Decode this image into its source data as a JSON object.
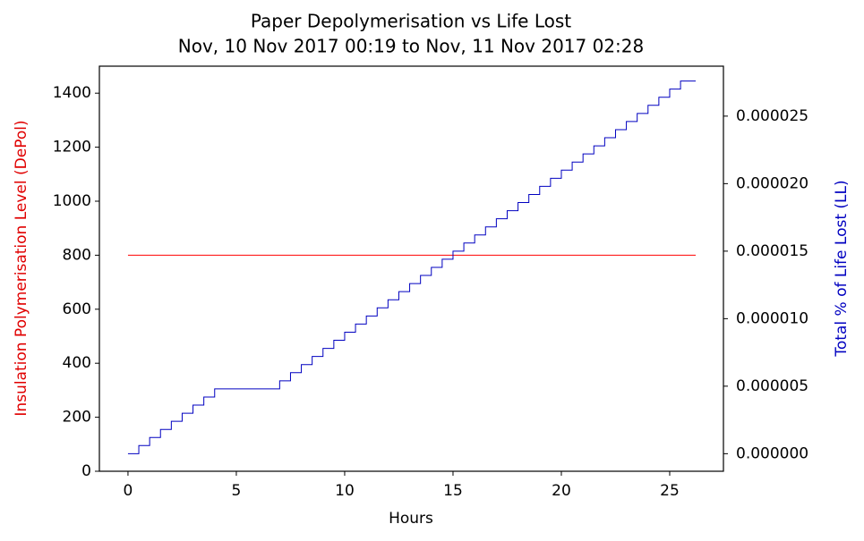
{
  "chart_data": {
    "type": "line",
    "title": "Paper Depolymerisation vs Life Lost",
    "subtitle": "Nov, 10 Nov 2017 00:19 to Nov, 11 Nov 2017 02:28",
    "xlabel": "Hours",
    "ylabel": "Insulation Polymerisation Level (DePol)",
    "y2label": "Total % of Life Lost (LL)",
    "ylabel_color": "#e00000",
    "y2label_color": "#0000c0",
    "xlim": [
      -1.32,
      27.48
    ],
    "xticks": [
      0,
      5,
      10,
      15,
      20,
      25
    ],
    "ylim": [
      0,
      1500
    ],
    "yticks": [
      0,
      200,
      400,
      600,
      800,
      1000,
      1200,
      1400
    ],
    "y2lim": [
      -1.3e-06,
      2.87e-05
    ],
    "y2ticks": [
      {
        "value": 0,
        "label": "0.000000"
      },
      {
        "value": 5e-06,
        "label": "0.000005"
      },
      {
        "value": 1e-05,
        "label": "0.000010"
      },
      {
        "value": 1.5e-05,
        "label": "0.000015"
      },
      {
        "value": 2e-05,
        "label": "0.000020"
      },
      {
        "value": 2.5e-05,
        "label": "0.000025"
      }
    ],
    "series": [
      {
        "name": "DePol",
        "color": "#ff0000",
        "axis": "y",
        "drawstyle": "default",
        "x": [
          0,
          26.2
        ],
        "values": [
          800,
          800
        ]
      },
      {
        "name": "LL",
        "color": "#0000c0",
        "axis": "y2",
        "drawstyle": "steps-post",
        "x": [
          0,
          0.5,
          1,
          1.5,
          2,
          2.5,
          3,
          3.5,
          4,
          7,
          7.5,
          8,
          8.5,
          9,
          9.5,
          10,
          10.5,
          11,
          11.5,
          12,
          12.5,
          13,
          13.5,
          14,
          14.5,
          15,
          15.5,
          16,
          16.5,
          17,
          17.5,
          18,
          18.5,
          19,
          19.5,
          20,
          20.5,
          21,
          21.5,
          22,
          22.5,
          23,
          23.5,
          24,
          24.5,
          25,
          25.5,
          26.2
        ],
        "values": [
          0,
          6e-07,
          1.2e-06,
          1.8e-06,
          2.4e-06,
          3e-06,
          3.6e-06,
          4.2e-06,
          4.8e-06,
          5.4e-06,
          6e-06,
          6.6e-06,
          7.2e-06,
          7.8e-06,
          8.4e-06,
          9e-06,
          9.6e-06,
          1.02e-05,
          1.08e-05,
          1.14e-05,
          1.2e-05,
          1.26e-05,
          1.32e-05,
          1.38e-05,
          1.44e-05,
          1.5e-05,
          1.56e-05,
          1.62e-05,
          1.68e-05,
          1.74e-05,
          1.8e-05,
          1.86e-05,
          1.92e-05,
          1.98e-05,
          2.04e-05,
          2.1e-05,
          2.16e-05,
          2.22e-05,
          2.28e-05,
          2.34e-05,
          2.4e-05,
          2.46e-05,
          2.52e-05,
          2.58e-05,
          2.64e-05,
          2.7e-05,
          2.76e-05,
          2.76e-05
        ]
      }
    ]
  }
}
